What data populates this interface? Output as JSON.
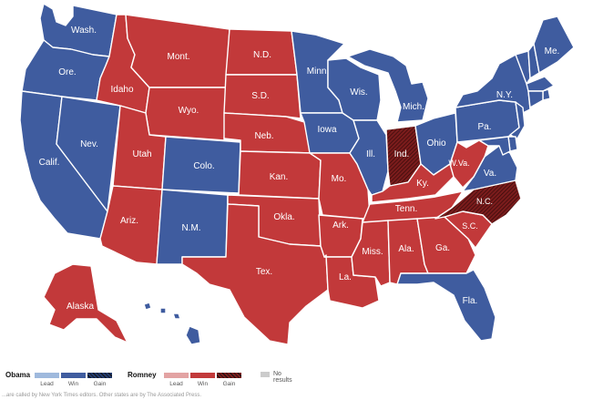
{
  "colors": {
    "obama_lead": "#9fb9dd",
    "obama_win": "#3f5c9f",
    "obama_gain": "#223a6e",
    "romney_lead": "#e3a3a3",
    "romney_win": "#c2393a",
    "romney_gain": "#7b1c1c",
    "no_results": "#cccccc",
    "border": "#ffffff"
  },
  "states": [
    {
      "abbr": "WA",
      "label": "Wash.",
      "winner": "obama_win"
    },
    {
      "abbr": "OR",
      "label": "Ore.",
      "winner": "obama_win"
    },
    {
      "abbr": "CA",
      "label": "Calif.",
      "winner": "obama_win"
    },
    {
      "abbr": "NV",
      "label": "Nev.",
      "winner": "obama_win"
    },
    {
      "abbr": "ID",
      "label": "Idaho",
      "winner": "romney_win"
    },
    {
      "abbr": "MT",
      "label": "Mont.",
      "winner": "romney_win"
    },
    {
      "abbr": "WY",
      "label": "Wyo.",
      "winner": "romney_win"
    },
    {
      "abbr": "UT",
      "label": "Utah",
      "winner": "romney_win"
    },
    {
      "abbr": "AZ",
      "label": "Ariz.",
      "winner": "romney_win"
    },
    {
      "abbr": "CO",
      "label": "Colo.",
      "winner": "obama_win"
    },
    {
      "abbr": "NM",
      "label": "N.M.",
      "winner": "obama_win"
    },
    {
      "abbr": "ND",
      "label": "N.D.",
      "winner": "romney_win"
    },
    {
      "abbr": "SD",
      "label": "S.D.",
      "winner": "romney_win"
    },
    {
      "abbr": "NE",
      "label": "Neb.",
      "winner": "romney_win"
    },
    {
      "abbr": "KS",
      "label": "Kan.",
      "winner": "romney_win"
    },
    {
      "abbr": "OK",
      "label": "Okla.",
      "winner": "romney_win"
    },
    {
      "abbr": "TX",
      "label": "Tex.",
      "winner": "romney_win"
    },
    {
      "abbr": "MN",
      "label": "Minn.",
      "winner": "obama_win"
    },
    {
      "abbr": "IA",
      "label": "Iowa",
      "winner": "obama_win"
    },
    {
      "abbr": "MO",
      "label": "Mo.",
      "winner": "romney_win"
    },
    {
      "abbr": "AR",
      "label": "Ark.",
      "winner": "romney_win"
    },
    {
      "abbr": "LA",
      "label": "La.",
      "winner": "romney_win"
    },
    {
      "abbr": "WI",
      "label": "Wis.",
      "winner": "obama_win"
    },
    {
      "abbr": "IL",
      "label": "Ill.",
      "winner": "obama_win"
    },
    {
      "abbr": "MI",
      "label": "Mich.",
      "winner": "obama_win"
    },
    {
      "abbr": "IN",
      "label": "Ind.",
      "winner": "romney_gain"
    },
    {
      "abbr": "OH",
      "label": "Ohio",
      "winner": "obama_win"
    },
    {
      "abbr": "KY",
      "label": "Ky.",
      "winner": "romney_win"
    },
    {
      "abbr": "TN",
      "label": "Tenn.",
      "winner": "romney_win"
    },
    {
      "abbr": "MS",
      "label": "Miss.",
      "winner": "romney_win"
    },
    {
      "abbr": "AL",
      "label": "Ala.",
      "winner": "romney_win"
    },
    {
      "abbr": "GA",
      "label": "Ga.",
      "winner": "romney_win"
    },
    {
      "abbr": "FL",
      "label": "Fla.",
      "winner": "obama_win"
    },
    {
      "abbr": "SC",
      "label": "S.C.",
      "winner": "romney_win"
    },
    {
      "abbr": "NC",
      "label": "N.C.",
      "winner": "romney_gain"
    },
    {
      "abbr": "VA",
      "label": "Va.",
      "winner": "obama_win"
    },
    {
      "abbr": "WV",
      "label": "W.Va.",
      "winner": "romney_win"
    },
    {
      "abbr": "PA",
      "label": "Pa.",
      "winner": "obama_win"
    },
    {
      "abbr": "NY",
      "label": "N.Y.",
      "winner": "obama_win"
    },
    {
      "abbr": "ME",
      "label": "Me.",
      "winner": "obama_win"
    },
    {
      "abbr": "NH",
      "label": "",
      "winner": "obama_win"
    },
    {
      "abbr": "VT",
      "label": "",
      "winner": "obama_win"
    },
    {
      "abbr": "MA",
      "label": "",
      "winner": "obama_win"
    },
    {
      "abbr": "CT",
      "label": "",
      "winner": "obama_win"
    },
    {
      "abbr": "RI",
      "label": "",
      "winner": "obama_win"
    },
    {
      "abbr": "NJ",
      "label": "",
      "winner": "obama_win"
    },
    {
      "abbr": "DE",
      "label": "",
      "winner": "obama_win"
    },
    {
      "abbr": "MD",
      "label": "",
      "winner": "obama_win"
    },
    {
      "abbr": "AK",
      "label": "Alaska",
      "winner": "romney_win"
    },
    {
      "abbr": "HI",
      "label": "",
      "winner": "obama_win"
    }
  ],
  "legend": {
    "obama": {
      "name": "Obama",
      "lead": "Lead",
      "win": "Win",
      "gain": "Gain"
    },
    "romney": {
      "name": "Romney",
      "lead": "Lead",
      "win": "Win",
      "gain": "Gain"
    },
    "no_results": "No results"
  },
  "footnote": "...are called by New York Times editors. Other states are by The Associated Press."
}
